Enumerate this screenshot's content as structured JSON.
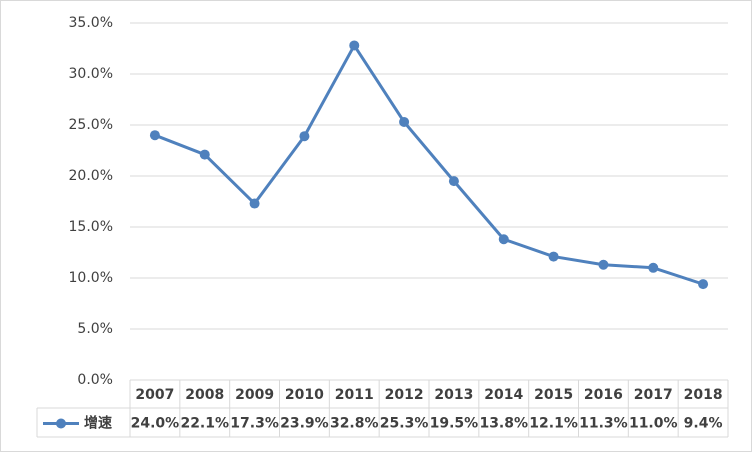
{
  "chart_data": {
    "type": "line",
    "categories": [
      "2007",
      "2008",
      "2009",
      "2010",
      "2011",
      "2012",
      "2013",
      "2014",
      "2015",
      "2016",
      "2017",
      "2018"
    ],
    "series": [
      {
        "name": "增速",
        "color": "#4f81bd",
        "values": [
          24.0,
          22.1,
          17.3,
          23.9,
          32.8,
          25.3,
          19.5,
          13.8,
          12.1,
          11.3,
          11.0,
          9.4
        ],
        "value_labels": [
          "24.0%",
          "22.1%",
          "17.3%",
          "23.9%",
          "32.8%",
          "25.3%",
          "19.5%",
          "13.8%",
          "12.1%",
          "11.3%",
          "11.0%",
          "9.4%"
        ]
      }
    ],
    "ylim": [
      0,
      35
    ],
    "yticks": [
      {
        "value": 0,
        "label": "0.0%"
      },
      {
        "value": 5,
        "label": "5.0%"
      },
      {
        "value": 10,
        "label": "10.0%"
      },
      {
        "value": 15,
        "label": "15.0%"
      },
      {
        "value": 20,
        "label": "20.0%"
      },
      {
        "value": 25,
        "label": "25.0%"
      },
      {
        "value": 30,
        "label": "30.0%"
      },
      {
        "value": 35,
        "label": "35.0%"
      }
    ],
    "grid": true
  }
}
